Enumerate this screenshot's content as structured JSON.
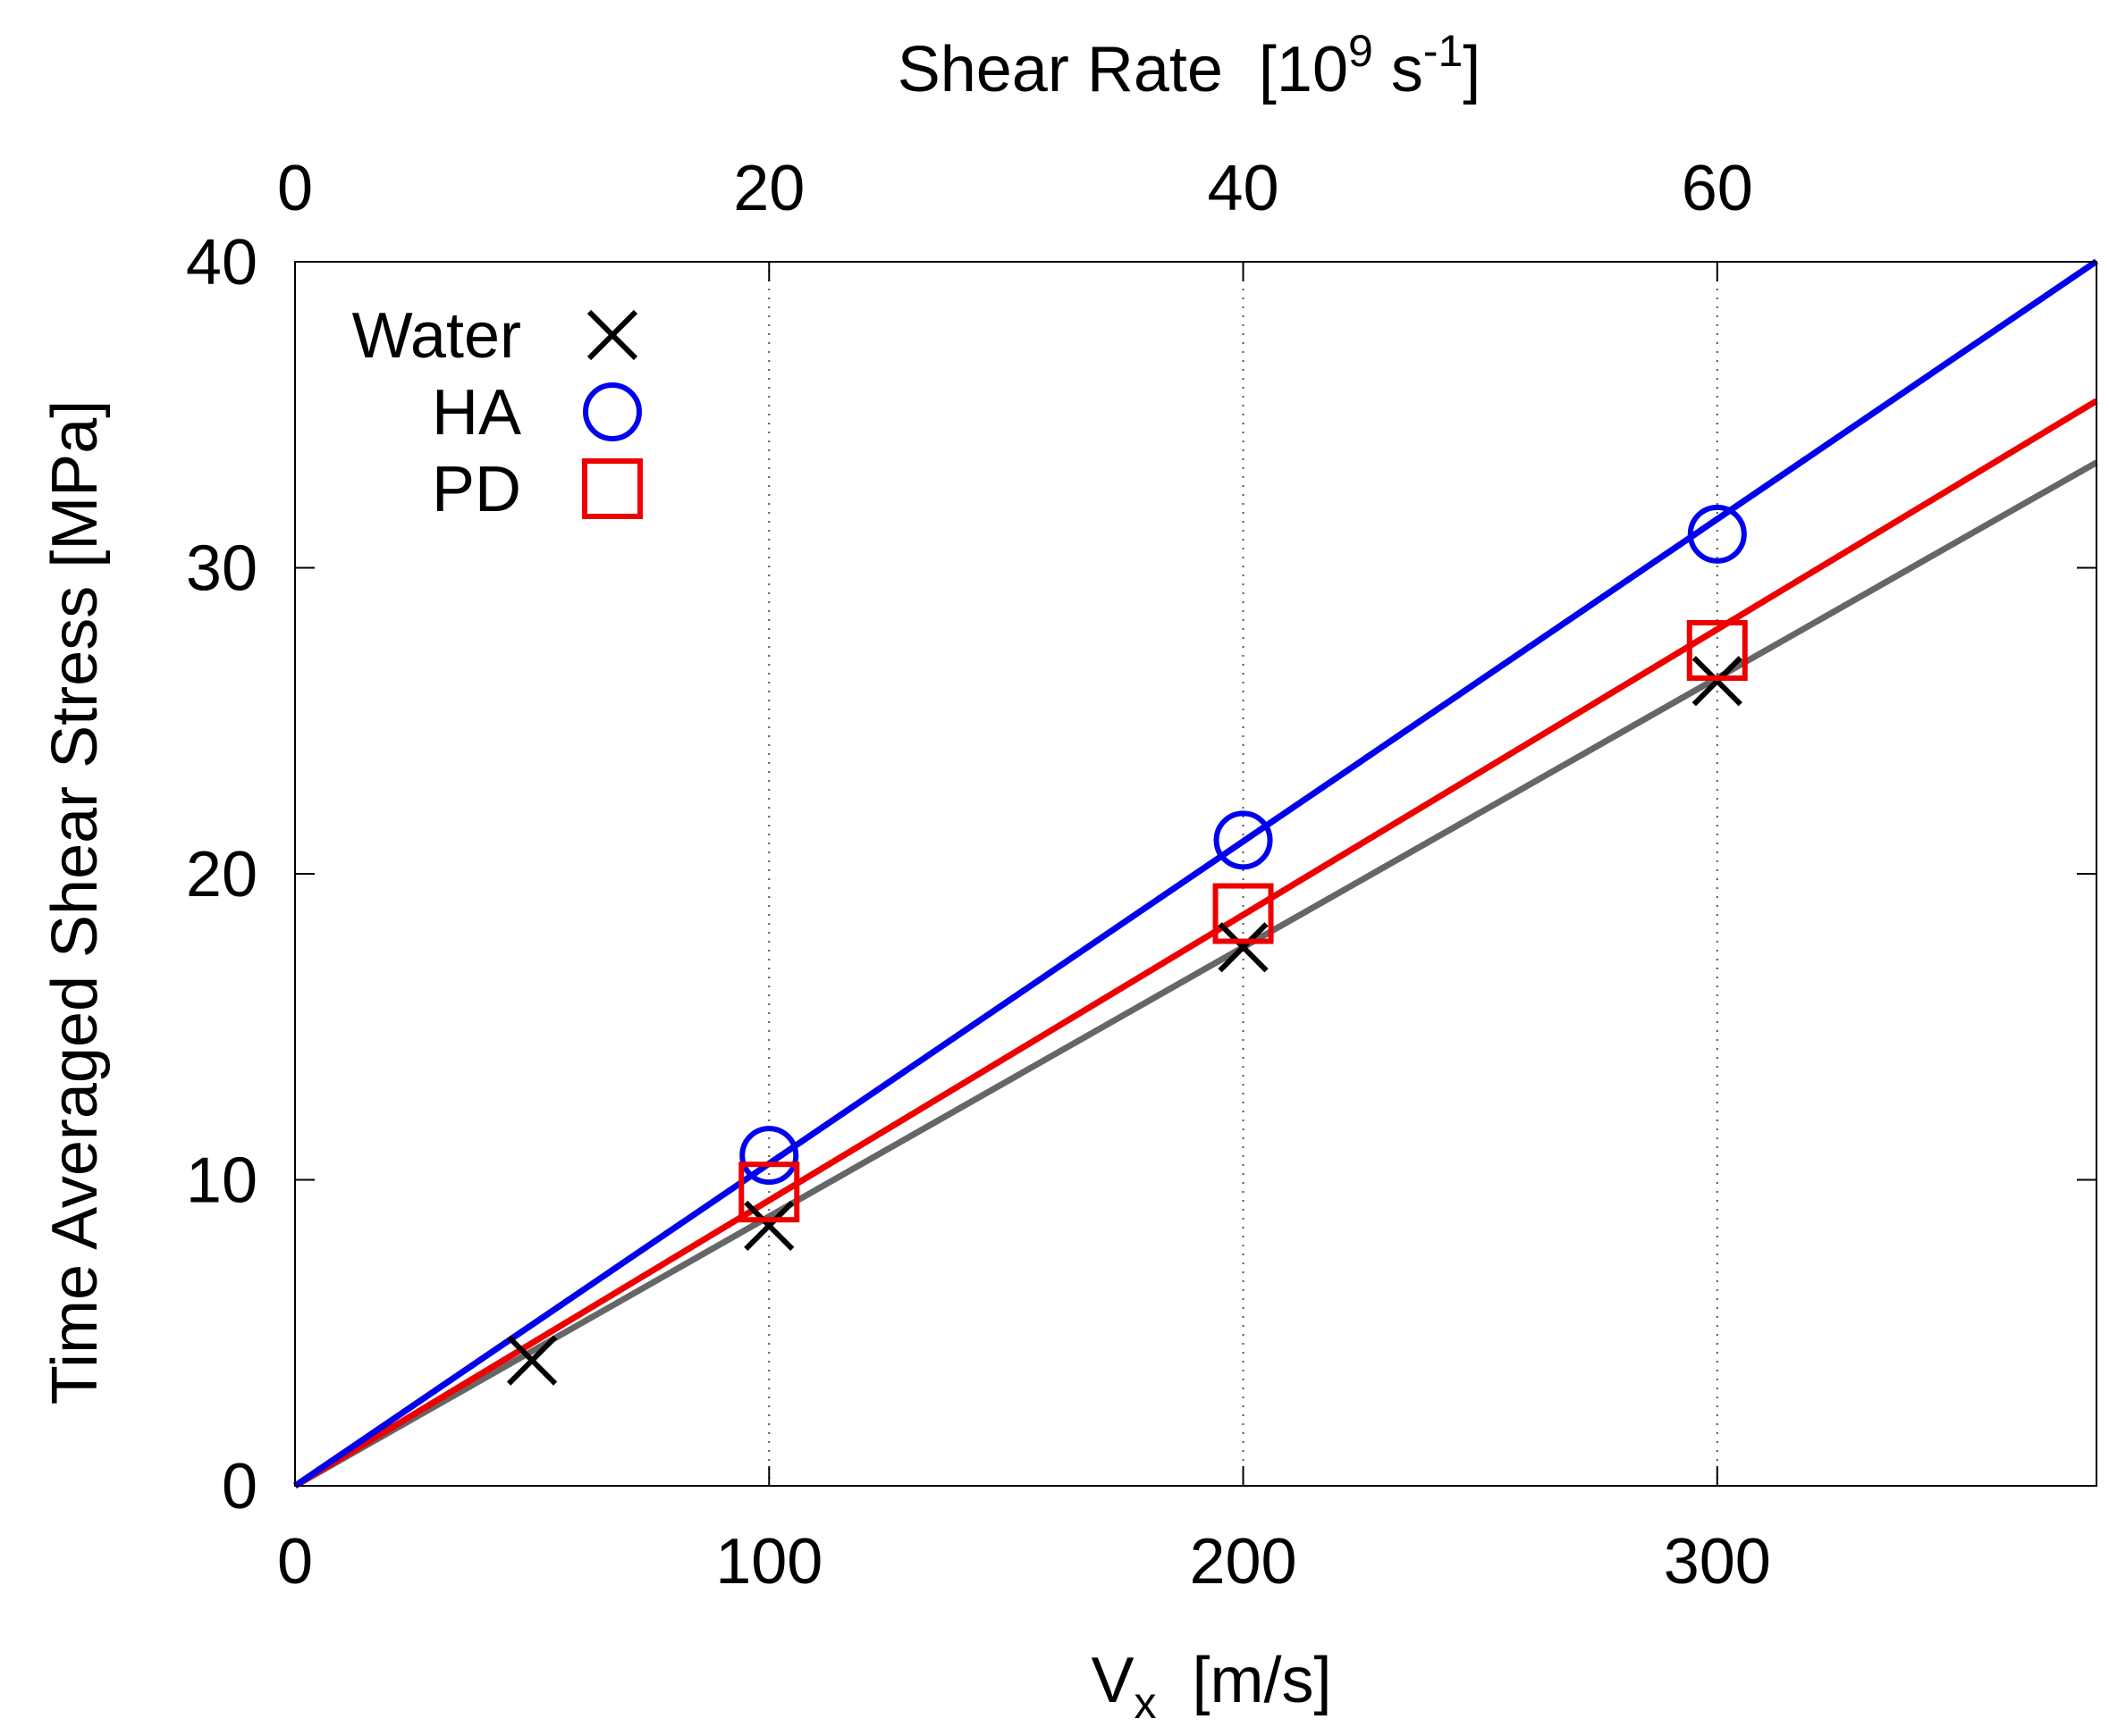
{
  "chart_data": {
    "type": "scatter",
    "xlabel_main": "V",
    "xlabel_sub": "x",
    "xlabel_unit": "[m/s]",
    "x2label_main": "Shear Rate",
    "x2label_unit_pre": "[10",
    "x2label_unit_exp": "9",
    "x2label_unit_mid": " s",
    "x2label_unit_exp2": "-1",
    "x2label_unit_post": "]",
    "ylabel": "Time Averaged Shear Stress  [MPa]",
    "xlim": [
      0,
      380
    ],
    "ylim": [
      0,
      40
    ],
    "x2lim": [
      0,
      76
    ],
    "xticks": [
      0,
      100,
      200,
      300
    ],
    "x2ticks": [
      0,
      20,
      40,
      60
    ],
    "yticks": [
      0,
      10,
      20,
      30,
      40
    ],
    "vertical_grid_at": [
      100,
      200,
      300
    ],
    "legend_position": "top-left",
    "series": [
      {
        "name": "Water",
        "marker": "x",
        "color": "#000000",
        "line_color": "#666666",
        "x": [
          50,
          100,
          200,
          300
        ],
        "y": [
          4.1,
          8.5,
          17.6,
          26.3
        ],
        "fit_slope": 0.088
      },
      {
        "name": "HA",
        "marker": "circle",
        "color": "#0000ee",
        "line_color": "#0000ee",
        "x": [
          100,
          200,
          300
        ],
        "y": [
          10.8,
          21.1,
          31.1
        ],
        "fit_slope": 0.1053
      },
      {
        "name": "PD",
        "marker": "square",
        "color": "#ee0000",
        "line_color": "#ee0000",
        "x": [
          100,
          200,
          300
        ],
        "y": [
          9.6,
          18.7,
          27.3
        ],
        "fit_slope": 0.0933
      }
    ]
  }
}
